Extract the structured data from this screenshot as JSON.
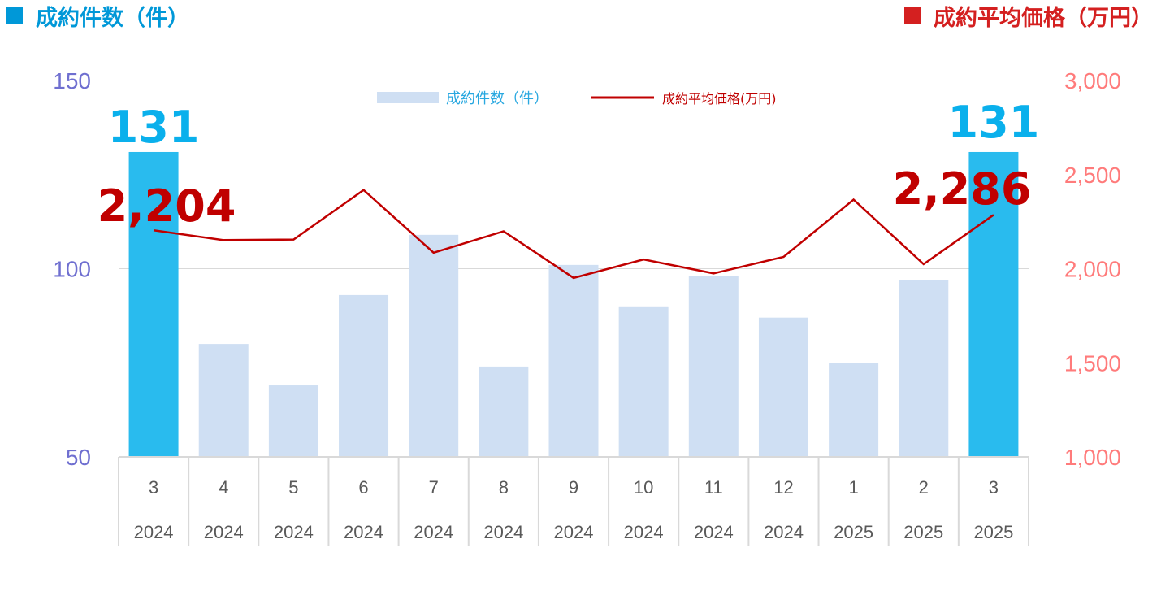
{
  "header": {
    "left_title": "成約件数（件）",
    "right_title": "成約平均価格（万円）"
  },
  "colors": {
    "bar": "#cfdff3",
    "bar_highlight": "#29bbee",
    "line": "#c00000",
    "left_header": "#0098d8",
    "right_header": "#d42020",
    "left_axis": "#6f6fd0",
    "right_axis": "#ff7b7b",
    "category_text": "#595959",
    "grid": "#d9d9d9",
    "highlight_label": "#0ab0ec",
    "price_label": "#c00000"
  },
  "chart_data": {
    "type": "bar",
    "categories": [
      {
        "month": "3",
        "year": "2024"
      },
      {
        "month": "4",
        "year": "2024"
      },
      {
        "month": "5",
        "year": "2024"
      },
      {
        "month": "6",
        "year": "2024"
      },
      {
        "month": "7",
        "year": "2024"
      },
      {
        "month": "8",
        "year": "2024"
      },
      {
        "month": "9",
        "year": "2024"
      },
      {
        "month": "10",
        "year": "2024"
      },
      {
        "month": "11",
        "year": "2024"
      },
      {
        "month": "12",
        "year": "2024"
      },
      {
        "month": "1",
        "year": "2025"
      },
      {
        "month": "2",
        "year": "2025"
      },
      {
        "month": "3",
        "year": "2025"
      }
    ],
    "series": [
      {
        "name": "成約件数（件）",
        "type": "bar",
        "axis": "left",
        "values": [
          131,
          80,
          69,
          93,
          109,
          74,
          101,
          90,
          98,
          87,
          75,
          97,
          131
        ],
        "highlight_indices": [
          0,
          12
        ]
      },
      {
        "name": "成約平均価格(万円)",
        "type": "line",
        "axis": "right",
        "values": [
          2204,
          2152,
          2155,
          2418,
          2085,
          2199,
          1951,
          2049,
          1975,
          2063,
          2367,
          2024,
          2286
        ]
      }
    ],
    "left_axis": {
      "min": 50,
      "max": 150,
      "ticks": [
        "50",
        "100",
        "150"
      ]
    },
    "right_axis": {
      "min": 1000,
      "max": 3000,
      "ticks": [
        "1,000",
        "1,500",
        "2,000",
        "2,500",
        "3,000"
      ]
    },
    "gridlines": [
      100
    ],
    "legend": {
      "position": "top-center"
    },
    "annotations": {
      "first_count": "131",
      "last_count": "131",
      "first_price": "2,204",
      "last_price": "2,286"
    }
  }
}
